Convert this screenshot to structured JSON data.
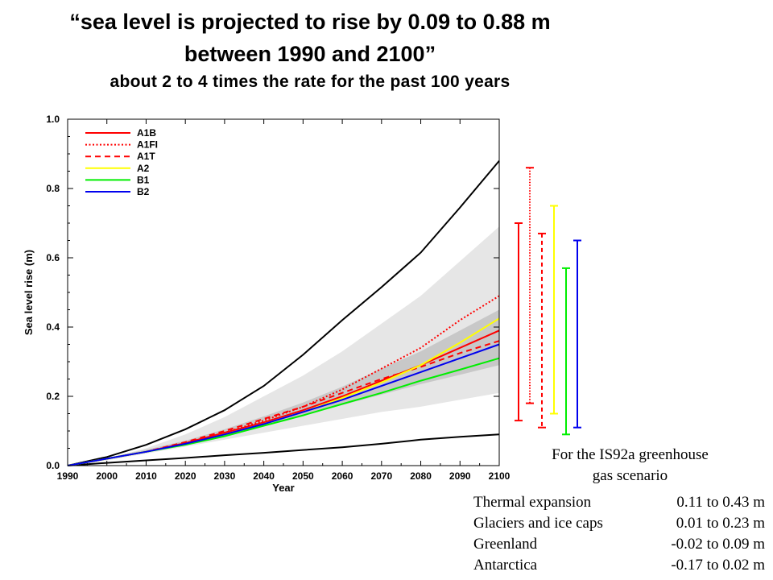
{
  "title": {
    "line1": "“sea level is projected to rise by 0.09 to 0.88 m",
    "line2": "between 1990 and 2100”",
    "subtitle": "about 2 to 4 times the rate for the past 100 years"
  },
  "chart_data": {
    "type": "line",
    "xlabel": "Year",
    "ylabel": "Sea level rise (m)",
    "xlim": [
      1990,
      2100
    ],
    "ylim": [
      0.0,
      1.0
    ],
    "x_ticks": [
      "1990",
      "2000",
      "2010",
      "2020",
      "2030",
      "2040",
      "2050",
      "2060",
      "2070",
      "2080",
      "2090",
      "2100"
    ],
    "y_ticks": [
      "0.0",
      "0.2",
      "0.4",
      "0.6",
      "0.8",
      "1.0"
    ],
    "x": [
      1990,
      2000,
      2010,
      2020,
      2030,
      2040,
      2050,
      2060,
      2070,
      2080,
      2090,
      2100
    ],
    "grid": false,
    "legend_position": "top-left",
    "series": [
      {
        "name": "A1B",
        "color": "#ff0000",
        "style": "solid",
        "values": [
          0.0,
          0.02,
          0.04,
          0.065,
          0.095,
          0.125,
          0.16,
          0.2,
          0.245,
          0.29,
          0.34,
          0.39
        ]
      },
      {
        "name": "A1FI",
        "color": "#ff0000",
        "style": "dotted",
        "values": [
          0.0,
          0.02,
          0.04,
          0.065,
          0.095,
          0.13,
          0.17,
          0.22,
          0.28,
          0.34,
          0.42,
          0.49
        ]
      },
      {
        "name": "A1T",
        "color": "#ff0000",
        "style": "dashed",
        "values": [
          0.0,
          0.02,
          0.04,
          0.068,
          0.1,
          0.135,
          0.17,
          0.21,
          0.25,
          0.285,
          0.325,
          0.36
        ]
      },
      {
        "name": "A2",
        "color": "#ffff00",
        "style": "solid",
        "values": [
          0.0,
          0.02,
          0.04,
          0.062,
          0.09,
          0.12,
          0.155,
          0.195,
          0.24,
          0.29,
          0.355,
          0.425
        ]
      },
      {
        "name": "B1",
        "color": "#00ee00",
        "style": "solid",
        "values": [
          0.0,
          0.02,
          0.04,
          0.06,
          0.085,
          0.115,
          0.145,
          0.178,
          0.21,
          0.245,
          0.277,
          0.31
        ]
      },
      {
        "name": "B2",
        "color": "#0000ee",
        "style": "solid",
        "values": [
          0.0,
          0.02,
          0.04,
          0.063,
          0.09,
          0.12,
          0.155,
          0.19,
          0.23,
          0.27,
          0.31,
          0.35
        ]
      }
    ],
    "envelope_lines": [
      {
        "color": "#000000",
        "values": [
          0.0,
          0.025,
          0.06,
          0.105,
          0.16,
          0.23,
          0.32,
          0.42,
          0.515,
          0.615,
          0.745,
          0.88
        ]
      },
      {
        "color": "#000000",
        "values": [
          0.0,
          0.008,
          0.015,
          0.022,
          0.03,
          0.037,
          0.045,
          0.053,
          0.063,
          0.075,
          0.083,
          0.09
        ]
      }
    ],
    "band_outer": {
      "color": "#e6e6e6",
      "low": [
        0.0,
        0.015,
        0.035,
        0.055,
        0.075,
        0.095,
        0.115,
        0.135,
        0.155,
        0.17,
        0.19,
        0.21
      ],
      "high": [
        0.0,
        0.02,
        0.05,
        0.09,
        0.14,
        0.2,
        0.26,
        0.33,
        0.41,
        0.49,
        0.59,
        0.69
      ]
    },
    "band_inner": {
      "color": "#c8c8c8",
      "low": [
        0.0,
        0.018,
        0.04,
        0.062,
        0.087,
        0.115,
        0.145,
        0.175,
        0.205,
        0.235,
        0.262,
        0.29
      ],
      "high": [
        0.0,
        0.022,
        0.046,
        0.072,
        0.105,
        0.142,
        0.182,
        0.228,
        0.28,
        0.33,
        0.39,
        0.45
      ]
    },
    "range_bars": [
      {
        "name": "A1B",
        "color": "#ff0000",
        "style": "solid",
        "low": 0.13,
        "high": 0.7
      },
      {
        "name": "A1FI",
        "color": "#ff0000",
        "style": "dotted",
        "low": 0.18,
        "high": 0.86
      },
      {
        "name": "A1T",
        "color": "#ff0000",
        "style": "dashed",
        "low": 0.11,
        "high": 0.67
      },
      {
        "name": "A2",
        "color": "#ffff00",
        "style": "solid",
        "low": 0.15,
        "high": 0.75
      },
      {
        "name": "B1",
        "color": "#00ee00",
        "style": "solid",
        "low": 0.09,
        "high": 0.57
      },
      {
        "name": "B2",
        "color": "#0000ee",
        "style": "solid",
        "low": 0.11,
        "high": 0.65
      }
    ]
  },
  "notes": {
    "heading_line1": "For the IS92a greenhouse",
    "heading_line2": "gas scenario",
    "rows": [
      {
        "label": "Thermal expansion",
        "value": "0.11 to 0.43 m"
      },
      {
        "label": "Glaciers and ice caps",
        "value": "0.01 to 0.23 m"
      },
      {
        "label": "Greenland",
        "value": "-0.02 to 0.09 m"
      },
      {
        "label": "Antarctica",
        "value": "-0.17 to 0.02 m"
      }
    ]
  }
}
